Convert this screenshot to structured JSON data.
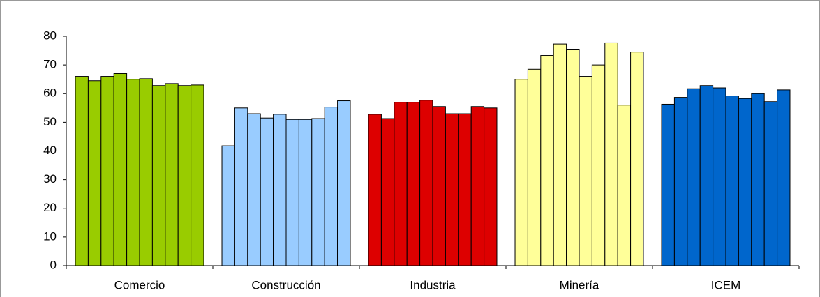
{
  "chart_data": {
    "type": "grouped-bar",
    "categories": [
      "Comercio",
      "Construcción",
      "Industria",
      "Minería",
      "ICEM"
    ],
    "colors": [
      "#99cc00",
      "#99ccff",
      "#dd0000",
      "#ffff99",
      "#0066cc"
    ],
    "values": [
      [
        66,
        64.5,
        66,
        67,
        65,
        65.2,
        62.8,
        63.5,
        62.8,
        63
      ],
      [
        41.8,
        55,
        53,
        51.5,
        52.8,
        51,
        51,
        51.3,
        55.3,
        57.5
      ],
      [
        52.8,
        51.3,
        57,
        57,
        57.7,
        55.5,
        53,
        53,
        55.5,
        55
      ],
      [
        65,
        68.5,
        73.3,
        77.3,
        75.5,
        66,
        70,
        77.7,
        56,
        74.5
      ],
      [
        56.3,
        58.7,
        61.7,
        62.8,
        62,
        59.2,
        58.3,
        60,
        57.2,
        61.3
      ]
    ],
    "ylim": [
      0,
      80
    ],
    "yticks": [
      0,
      10,
      20,
      30,
      40,
      50,
      60,
      70,
      80
    ],
    "grid": false
  }
}
